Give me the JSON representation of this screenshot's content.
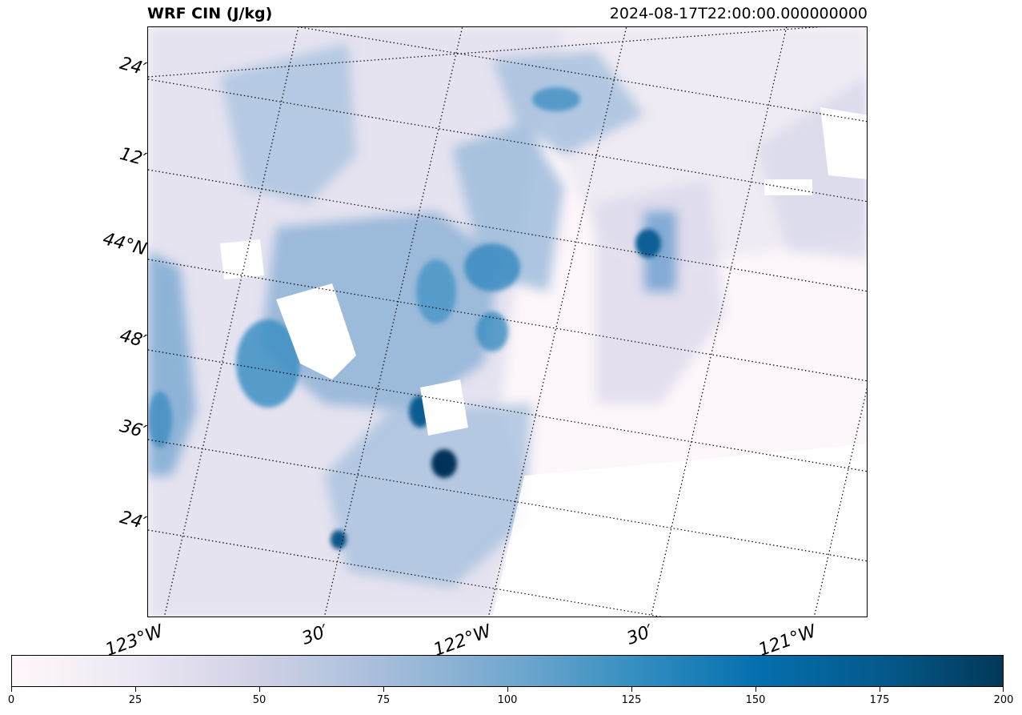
{
  "title": "WRF CIN (J/kg)",
  "timestamp": "2024-08-17T22:00:00.000000000",
  "lat_labels": [
    "24′",
    "12′",
    "44°N",
    "48′",
    "36′",
    "24′"
  ],
  "lon_labels": [
    "123°W",
    "30′",
    "122°W",
    "30′",
    "121°W"
  ],
  "colorbar": {
    "min": 0,
    "max": 200,
    "ticks": [
      "0",
      "25",
      "50",
      "75",
      "100",
      "125",
      "150",
      "175",
      "200"
    ],
    "colormap": [
      "#fff7fb",
      "#ece7f2",
      "#d0d1e6",
      "#a6bddb",
      "#74a9cf",
      "#3690c0",
      "#0570b0",
      "#045a8d",
      "#023858"
    ]
  },
  "colors": {
    "background": "#fdf6fa",
    "grid": "#000000"
  }
}
